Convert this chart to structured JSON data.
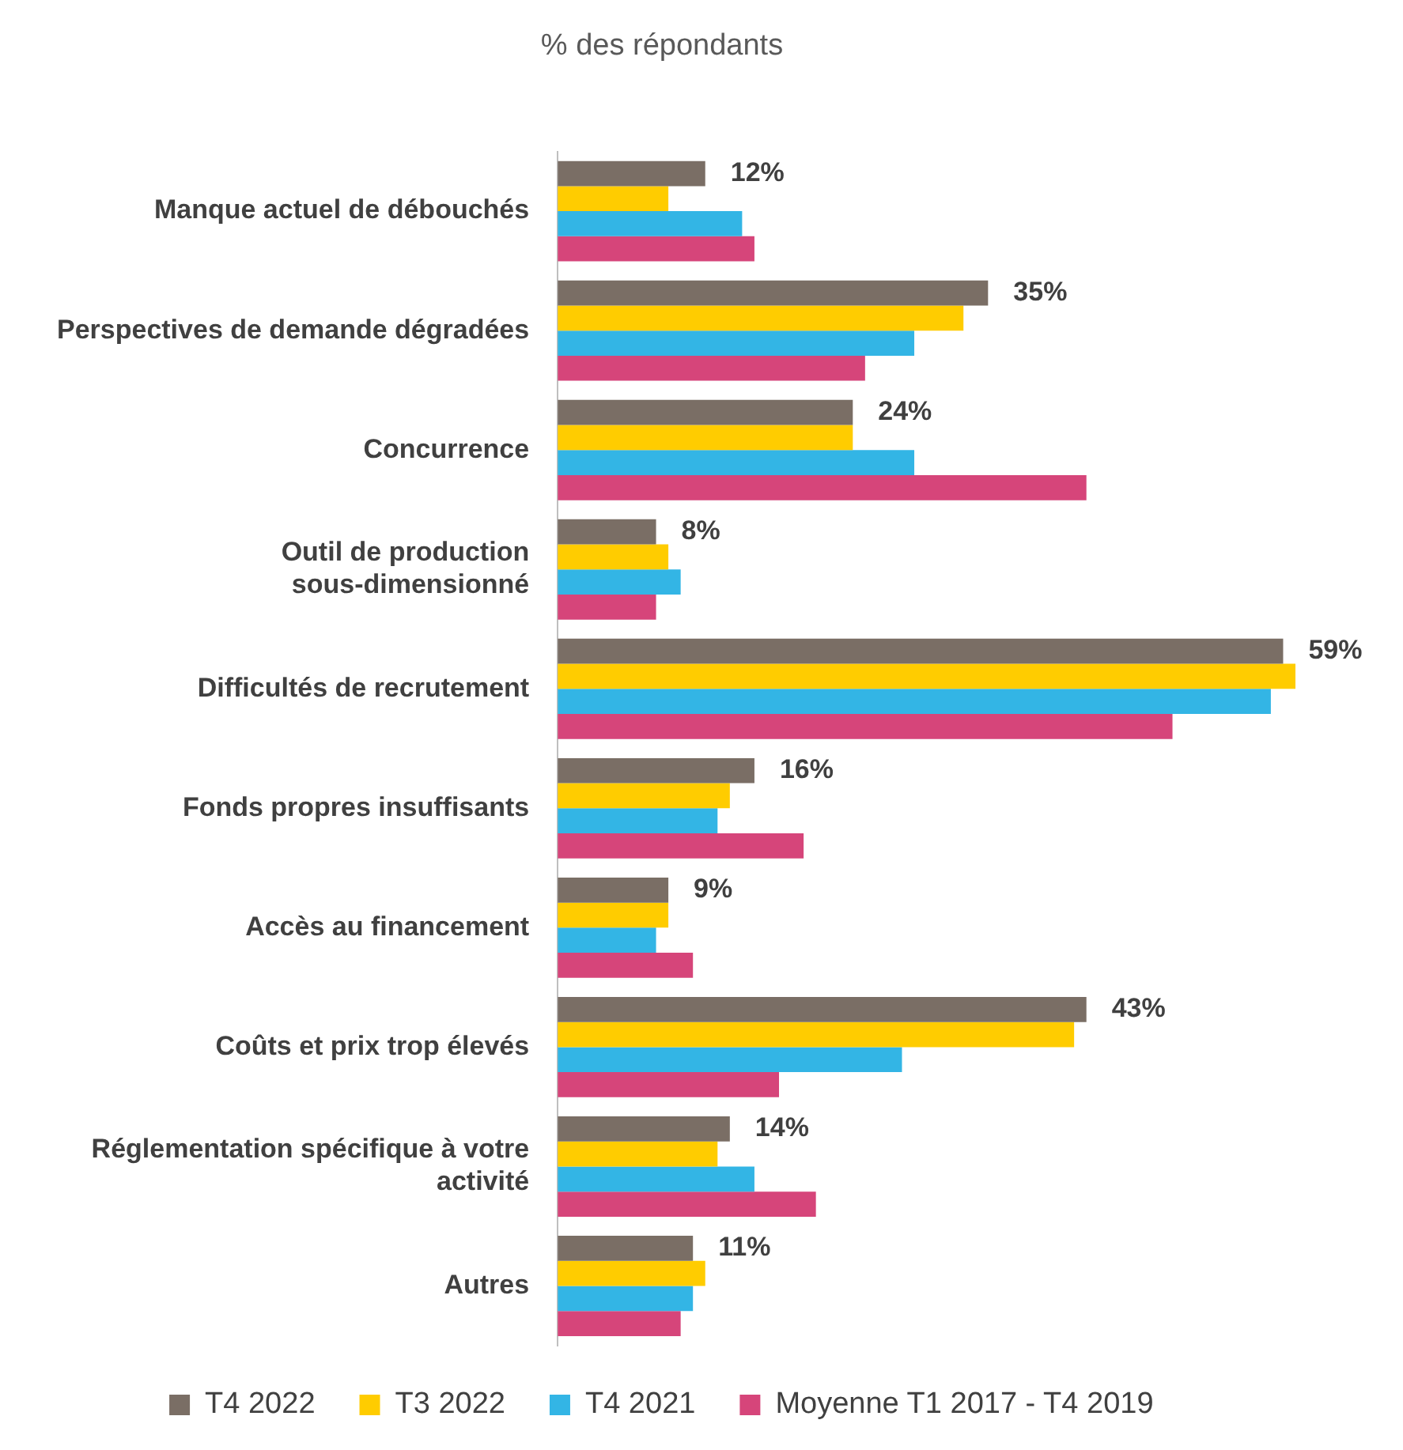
{
  "chart_data": {
    "type": "bar",
    "orientation": "horizontal",
    "title": "% des répondants",
    "categories": [
      "Manque actuel de débouchés",
      "Perspectives de demande dégradées",
      "Concurrence",
      "Outil de production sous-dimensionné",
      "Difficultés de recrutement",
      "Fonds propres insuffisants",
      "Accès au financement",
      "Coûts et prix trop élevés",
      "Réglementation spécifique à votre activité",
      "Autres"
    ],
    "series": [
      {
        "name": "T4 2022",
        "color": "#7a6e65",
        "values": [
          12,
          35,
          24,
          8,
          59,
          16,
          9,
          43,
          14,
          11
        ],
        "value_labels": [
          "12%",
          "35%",
          "24%",
          "8%",
          "59%",
          "16%",
          "9%",
          "43%",
          "14%",
          "11%"
        ]
      },
      {
        "name": "T3 2022",
        "color": "#ffcc00",
        "values": [
          9,
          33,
          24,
          9,
          60,
          14,
          9,
          42,
          13,
          12
        ]
      },
      {
        "name": "T4 2021",
        "color": "#33b5e5",
        "values": [
          15,
          29,
          29,
          10,
          58,
          13,
          8,
          28,
          16,
          11
        ]
      },
      {
        "name": "Moyenne T1 2017 - T4 2019",
        "color": "#d6457a",
        "values": [
          16,
          25,
          43,
          8,
          50,
          20,
          11,
          18,
          21,
          10
        ]
      }
    ],
    "grid": false,
    "legend": "bottom",
    "tick_labels": "y"
  }
}
